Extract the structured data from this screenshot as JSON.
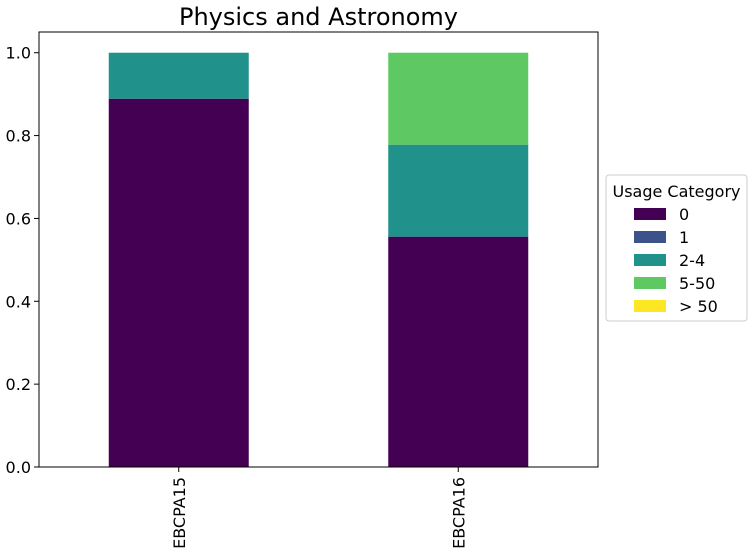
{
  "chart_data": {
    "type": "bar",
    "stacked": true,
    "title": "Physics and Astronomy",
    "xlabel": "",
    "ylabel": "",
    "categories": [
      "EBCPA15",
      "EBCPA16"
    ],
    "ylim": [
      0,
      1.05
    ],
    "yticks": [
      "0.0",
      "0.2",
      "0.4",
      "0.6",
      "0.8",
      "1.0"
    ],
    "legend": {
      "title": "Usage Category",
      "placement": "center-right outside"
    },
    "series": [
      {
        "name": "0",
        "color": "#440154",
        "values": [
          0.889,
          0.556
        ]
      },
      {
        "name": "1",
        "color": "#3b528b",
        "values": [
          0.0,
          0.0
        ]
      },
      {
        "name": "2-4",
        "color": "#21918c",
        "values": [
          0.111,
          0.222
        ]
      },
      {
        "name": "5-50",
        "color": "#5ec962",
        "values": [
          0.0,
          0.222
        ]
      },
      {
        "name": "> 50",
        "color": "#fde725",
        "values": [
          0.0,
          0.0
        ]
      }
    ],
    "grid": false
  }
}
